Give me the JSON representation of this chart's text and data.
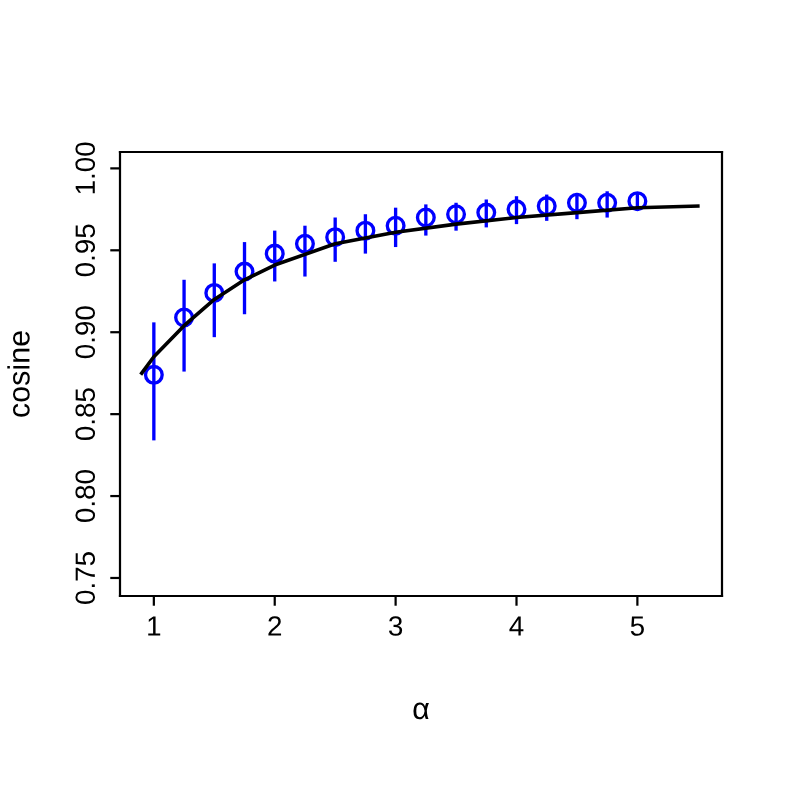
{
  "chart_data": {
    "type": "scatter",
    "xlabel": "α",
    "ylabel": "cosine",
    "xlim": [
      0.72,
      5.7
    ],
    "ylim": [
      0.739,
      1.01
    ],
    "xticks": [
      1,
      2,
      3,
      4,
      5
    ],
    "yticks": [
      0.75,
      {
        "value": 0.8,
        "label": "0.80"
      },
      0.85,
      {
        "value": 0.9,
        "label": "0.90"
      },
      0.95,
      {
        "value": 1.0,
        "label": "1.00"
      }
    ],
    "grid": false,
    "legend": false,
    "series": [
      {
        "color": "#0000ff",
        "marker": "circle",
        "x": [
          1,
          1.25,
          1.5,
          1.75,
          2,
          2.25,
          2.5,
          2.75,
          3,
          3.25,
          3.5,
          3.75,
          4,
          4.25,
          4.5,
          4.75,
          5
        ],
        "values": [
          0.874,
          0.909,
          0.924,
          0.937,
          0.948,
          0.954,
          0.958,
          0.962,
          0.965,
          0.97,
          0.972,
          0.973,
          0.975,
          0.977,
          0.979,
          0.979,
          0.98
        ],
        "errors": [
          [
            0.835,
            0.905
          ],
          [
            0.877,
            0.931
          ],
          [
            0.898,
            0.941
          ],
          [
            0.912,
            0.954
          ],
          [
            0.932,
            0.961
          ],
          [
            0.935,
            0.964
          ],
          [
            0.944,
            0.969
          ],
          [
            0.949,
            0.971
          ],
          [
            0.953,
            0.975
          ],
          [
            0.96,
            0.977
          ],
          [
            0.963,
            0.978
          ],
          [
            0.965,
            0.98
          ],
          [
            0.967,
            0.982
          ],
          [
            0.969,
            0.983
          ],
          [
            0.97,
            0.984
          ],
          [
            0.971,
            0.985
          ],
          [
            0.975,
            0.984
          ]
        ]
      },
      {
        "type": "line",
        "color": "#000000",
        "marker": "none",
        "line_style": "solid",
        "x": [
          0.9,
          1.0,
          1.25,
          1.5,
          1.75,
          2.0,
          2.5,
          3.0,
          3.5,
          4.0,
          4.5,
          5.0,
          5.5
        ],
        "values": [
          0.875,
          0.885,
          0.904,
          0.92,
          0.932,
          0.941,
          0.954,
          0.961,
          0.966,
          0.97,
          0.973,
          0.976,
          0.977
        ]
      }
    ]
  }
}
